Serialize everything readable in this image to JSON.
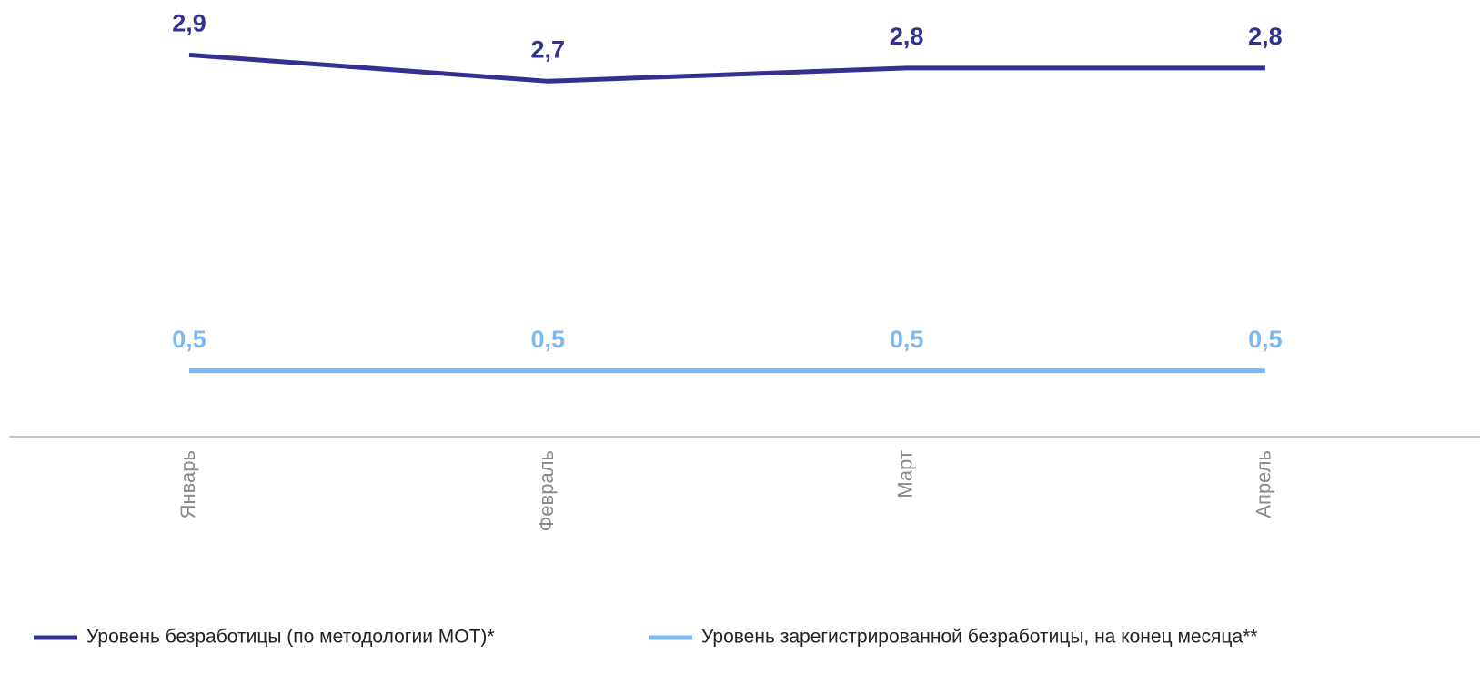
{
  "chart_data": {
    "type": "line",
    "categories": [
      "Январь",
      "Февраль",
      "Март",
      "Апрель"
    ],
    "series": [
      {
        "name": "Уровень безработицы (по методологии МОТ)*",
        "color": "#33318f",
        "values": [
          2.9,
          2.7,
          2.8,
          2.8
        ],
        "value_labels": [
          "2,9",
          "2,7",
          "2,8",
          "2,8"
        ]
      },
      {
        "name": "Уровень зарегистрированной безработицы, на конец месяца**",
        "color": "#7cb9f0",
        "values": [
          0.5,
          0.5,
          0.5,
          0.5
        ],
        "value_labels": [
          "0,5",
          "0,5",
          "0,5",
          "0,5"
        ]
      }
    ]
  }
}
